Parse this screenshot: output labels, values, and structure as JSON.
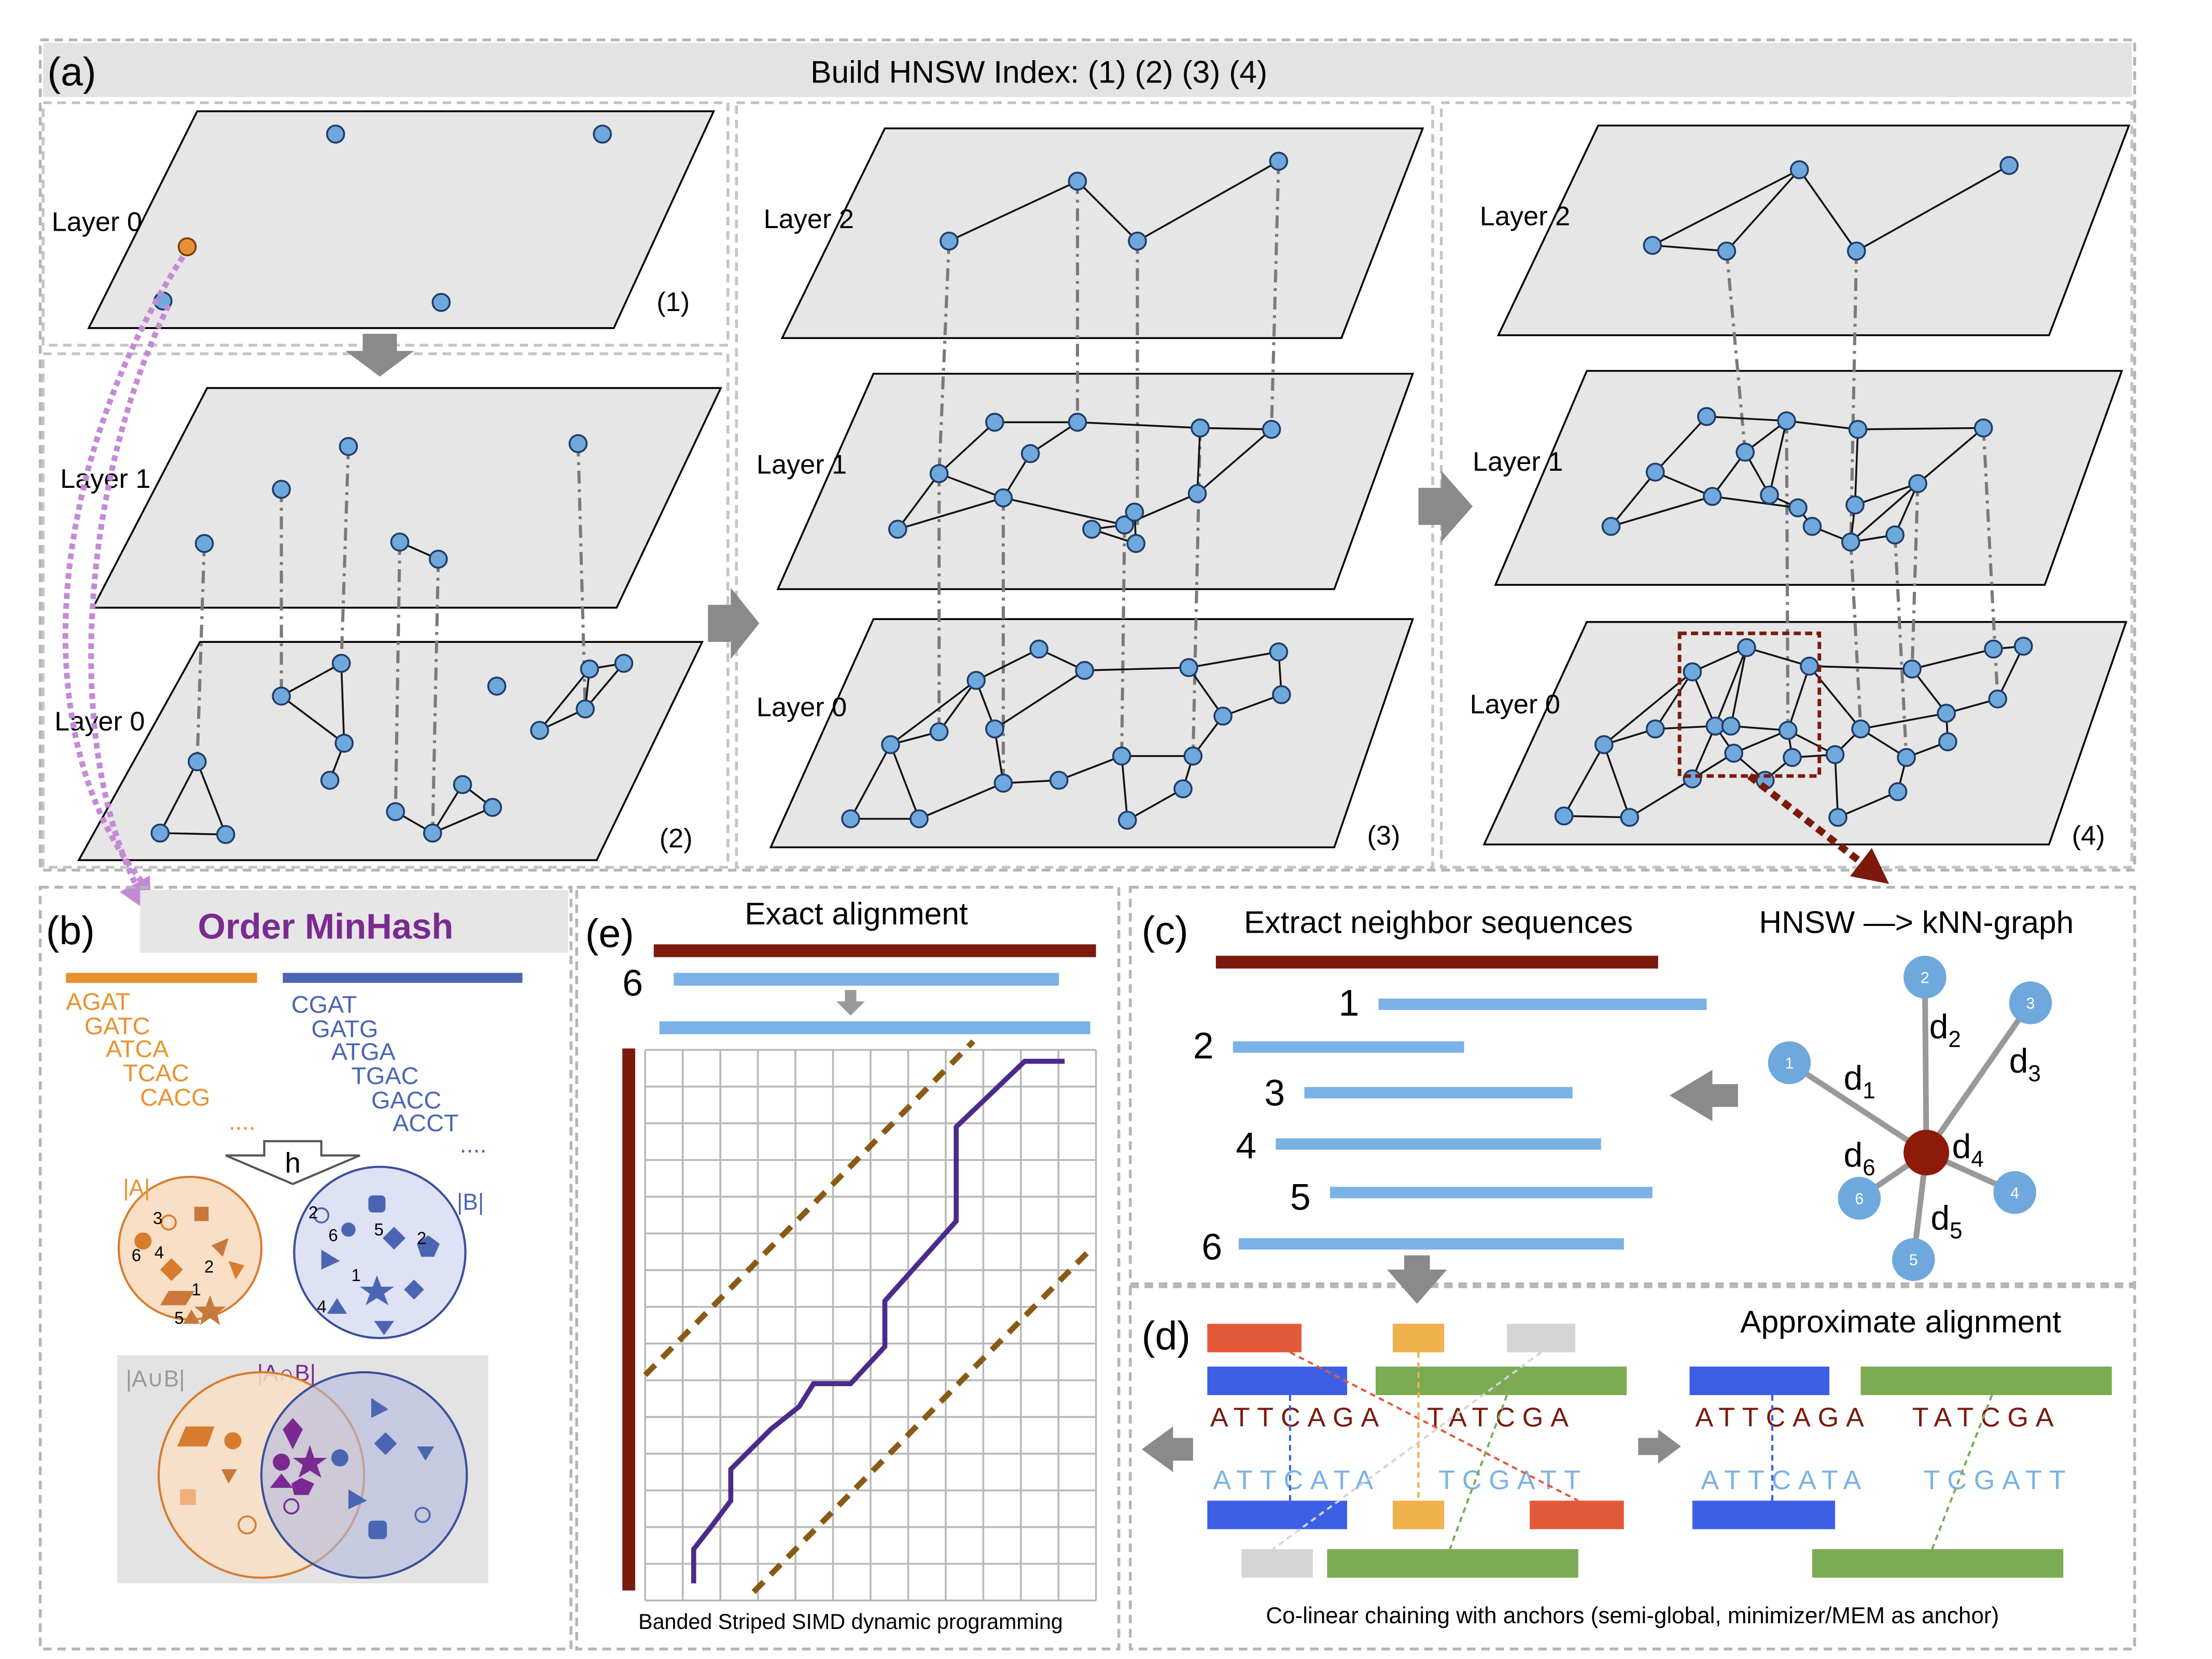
{
  "panel_a": {
    "label": "(a)",
    "title": "Build HNSW Index: (1) (2) (3) (4)",
    "sub1": {
      "step": "(1)",
      "layer0": "Layer 0"
    },
    "sub2": {
      "step": "(2)",
      "layer1": "Layer 1",
      "layer0": "Layer 0"
    },
    "sub3": {
      "step": "(3)",
      "layer2": "Layer 2",
      "layer1": "Layer 1",
      "layer0": "Layer 0"
    },
    "sub4": {
      "step": "(4)",
      "layer2": "Layer 2",
      "layer1": "Layer 1",
      "layer0": "Layer 0"
    }
  },
  "panel_b": {
    "label": "(b)",
    "title": "Order MinHash",
    "seq_a": [
      "AGAT",
      "GATC",
      "ATCA",
      "TCAC",
      "CACG"
    ],
    "seq_a_more": "....",
    "seq_b": [
      "CGAT",
      "GATG",
      "ATGA",
      "TGAC",
      "GACC",
      "ACCT"
    ],
    "seq_b_more": "....",
    "hash": "h",
    "set_a": "|A|",
    "set_b": "|B|",
    "union": "|A∪B|",
    "intersection": "|A∩B|",
    "ranks_a": [
      "1",
      "2",
      "3",
      "4",
      "5",
      "6"
    ],
    "ranks_b": [
      "1",
      "2",
      "4",
      "5",
      "6"
    ]
  },
  "panel_e": {
    "label": "(e)",
    "title": "Exact alignment",
    "row_number": "6",
    "caption": "Banded Striped SIMD dynamic programming"
  },
  "panel_c": {
    "label": "(c)",
    "title": "Extract neighbor sequences",
    "graph_title": "HNSW —> kNN-graph",
    "seq_numbers": [
      "1",
      "2",
      "3",
      "4",
      "5",
      "6"
    ],
    "node_labels": [
      "1",
      "2",
      "3",
      "4",
      "5",
      "6"
    ],
    "distances": [
      {
        "base": "d",
        "sub": "1"
      },
      {
        "base": "d",
        "sub": "2"
      },
      {
        "base": "d",
        "sub": "3"
      },
      {
        "base": "d",
        "sub": "4"
      },
      {
        "base": "d",
        "sub": "5"
      },
      {
        "base": "d",
        "sub": "6"
      }
    ]
  },
  "panel_d": {
    "label": "(d)",
    "title": "Approximate alignment",
    "ref_left": "ATTCAGA",
    "ref_right": "TATCGA",
    "qry_left": "ATTCATA",
    "qry_right": "TCGATT",
    "caption": "Co-linear chaining with anchors (semi-global, minimizer/MEM as anchor)"
  },
  "colors": {
    "node_fill": "#6fa8dc",
    "node_stroke": "#1f3c66",
    "plane_fill": "#e6e6e6",
    "query_node": "#e69138",
    "dark_red": "#7b1a0c",
    "light_blue_bar": "#7ab2e6",
    "orange": "#e8922e",
    "purple": "#7a2a92",
    "blue_text": "#4a66b3",
    "anchor_red": "#e4583a",
    "anchor_blue": "#3d5fe6",
    "anchor_green": "#7bab52",
    "anchor_orange": "#f0b04c",
    "anchor_gray": "#d5d5d5",
    "path_purple": "#4b2a8c",
    "band_brown": "#8a5a14"
  }
}
